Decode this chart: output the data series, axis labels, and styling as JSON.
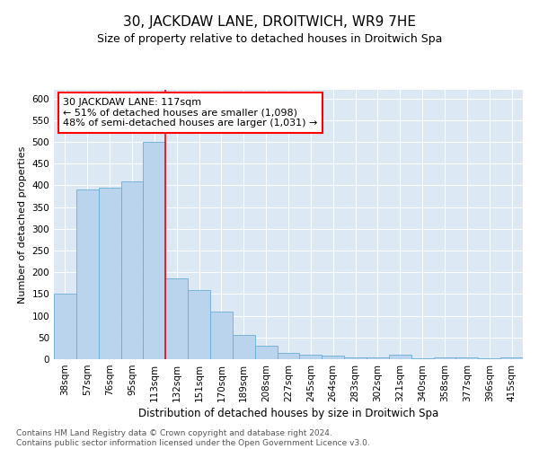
{
  "title": "30, JACKDAW LANE, DROITWICH, WR9 7HE",
  "subtitle": "Size of property relative to detached houses in Droitwich Spa",
  "xlabel": "Distribution of detached houses by size in Droitwich Spa",
  "ylabel": "Number of detached properties",
  "categories": [
    "38sqm",
    "57sqm",
    "76sqm",
    "95sqm",
    "113sqm",
    "132sqm",
    "151sqm",
    "170sqm",
    "189sqm",
    "208sqm",
    "227sqm",
    "245sqm",
    "264sqm",
    "283sqm",
    "302sqm",
    "321sqm",
    "340sqm",
    "358sqm",
    "377sqm",
    "396sqm",
    "415sqm"
  ],
  "values": [
    150,
    390,
    395,
    410,
    500,
    185,
    160,
    110,
    55,
    30,
    15,
    10,
    8,
    5,
    5,
    10,
    3,
    5,
    5,
    3,
    5
  ],
  "bar_color": "#bad4ed",
  "bar_edge_color": "#6aaed6",
  "background_color": "#dce9f5",
  "red_line_x": 4.5,
  "annotation_text": "30 JACKDAW LANE: 117sqm\n← 51% of detached houses are smaller (1,098)\n48% of semi-detached houses are larger (1,031) →",
  "footnote": "Contains HM Land Registry data © Crown copyright and database right 2024.\nContains public sector information licensed under the Open Government Licence v3.0.",
  "ylim": [
    0,
    620
  ],
  "yticks": [
    0,
    50,
    100,
    150,
    200,
    250,
    300,
    350,
    400,
    450,
    500,
    550,
    600
  ],
  "title_fontsize": 11,
  "subtitle_fontsize": 9,
  "xlabel_fontsize": 8.5,
  "ylabel_fontsize": 8,
  "tick_fontsize": 7.5,
  "annotation_fontsize": 8,
  "footnote_fontsize": 6.5
}
